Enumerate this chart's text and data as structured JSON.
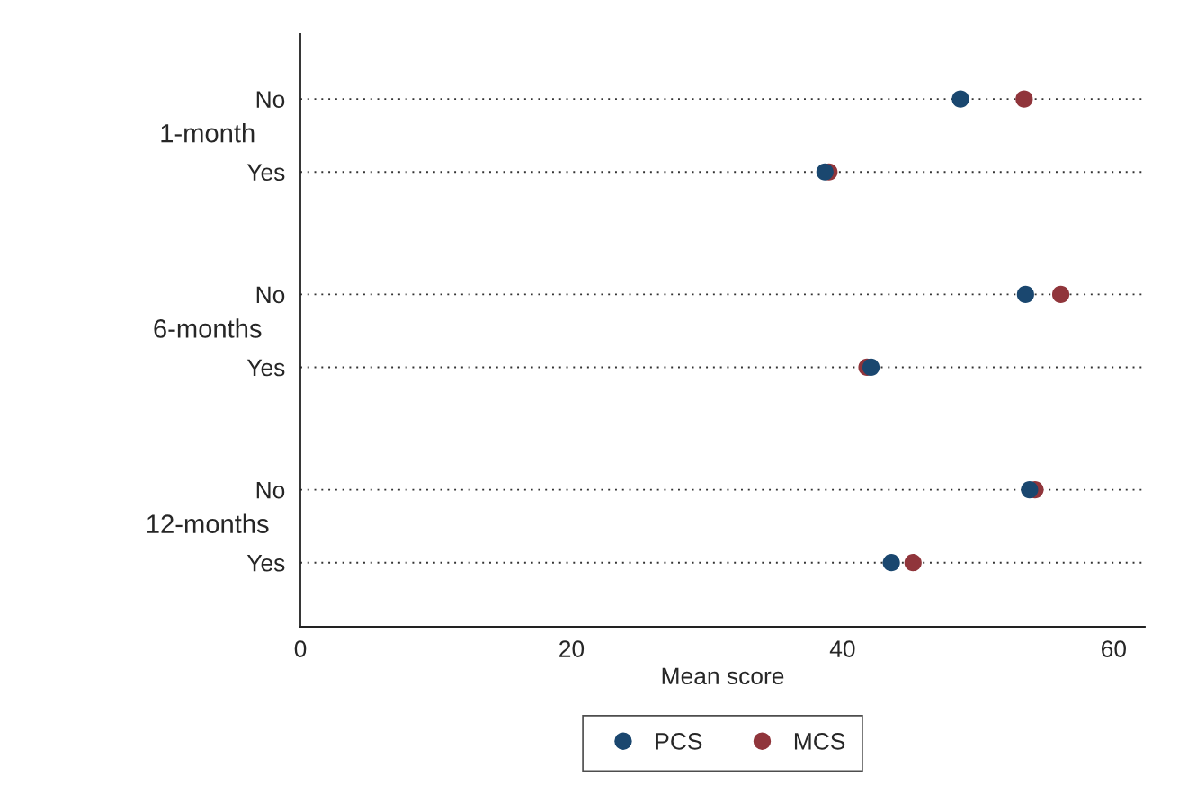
{
  "chart_data": {
    "type": "scatter",
    "orientation": "horizontal",
    "xlabel": "Mean score",
    "categories": [
      "No",
      "Yes",
      "No",
      "Yes",
      "No",
      "Yes"
    ],
    "annotations": [
      "1-month",
      "6-months",
      "12-months"
    ],
    "series": [
      {
        "name": "PCS",
        "color": "#1a476f",
        "values": [
          48.7,
          38.7,
          53.5,
          42.1,
          53.8,
          43.6
        ]
      },
      {
        "name": "MCS",
        "color": "#90353b",
        "values": [
          53.4,
          39.0,
          56.1,
          41.8,
          54.2,
          45.2
        ]
      }
    ],
    "xlim": [
      0,
      62.3
    ],
    "xticks": [
      0,
      20,
      40,
      60
    ],
    "grid": "y",
    "legend": "bottom",
    "marker": "circle"
  }
}
